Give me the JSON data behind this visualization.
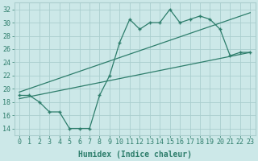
{
  "line1_x": [
    0,
    1,
    2,
    3,
    4,
    5,
    6,
    7,
    8,
    9,
    10,
    11,
    12,
    13,
    14,
    15,
    16,
    17,
    18,
    19,
    20,
    21,
    22,
    23
  ],
  "line1_y": [
    19.0,
    19.0,
    18.0,
    16.5,
    16.5,
    14.0,
    14.0,
    14.0,
    19.0,
    22.0,
    27.0,
    30.5,
    29.0,
    30.0,
    30.0,
    32.0,
    30.0,
    30.5,
    31.0,
    30.5,
    29.0,
    25.0,
    25.5,
    25.5
  ],
  "line2_x": [
    0,
    23
  ],
  "line2_y": [
    19.5,
    31.5
  ],
  "line3_x": [
    0,
    23
  ],
  "line3_y": [
    18.5,
    25.5
  ],
  "line_color": "#2d7d6b",
  "bg_color": "#cce8e8",
  "grid_color": "#aacece",
  "xlabel": "Humidex (Indice chaleur)",
  "xlim": [
    -0.5,
    23.5
  ],
  "ylim": [
    13,
    33
  ],
  "yticks": [
    14,
    16,
    18,
    20,
    22,
    24,
    26,
    28,
    30,
    32
  ],
  "xticks": [
    0,
    1,
    2,
    3,
    4,
    5,
    6,
    7,
    8,
    9,
    10,
    11,
    12,
    13,
    14,
    15,
    16,
    17,
    18,
    19,
    20,
    21,
    22,
    23
  ],
  "xlabel_fontsize": 7.0,
  "tick_fontsize": 6.0
}
